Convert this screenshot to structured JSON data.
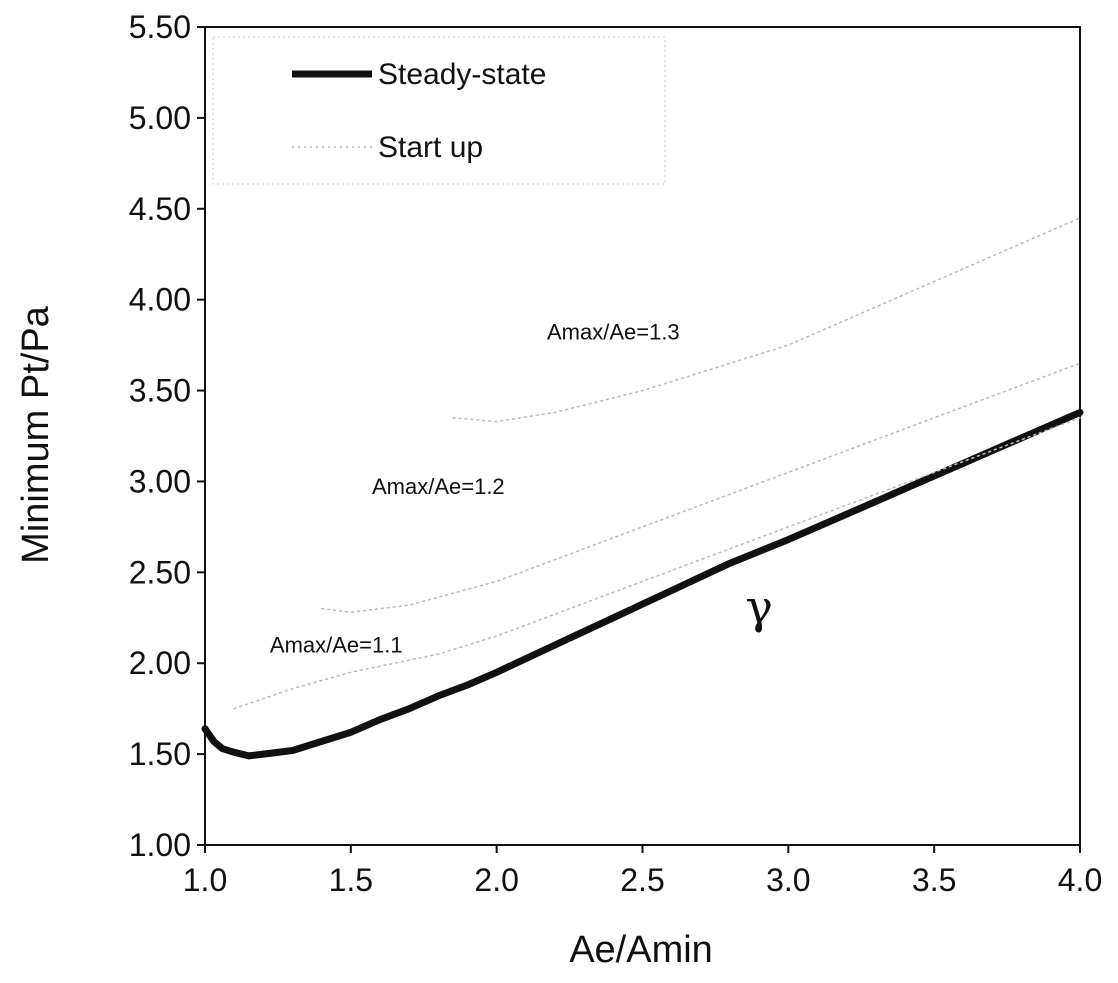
{
  "chart_data": {
    "type": "line",
    "title": "",
    "xlabel": "Ae/Amin",
    "ylabel": "Minimum Pt/Pa",
    "xlim": [
      1.0,
      4.0
    ],
    "ylim": [
      1.0,
      5.5
    ],
    "x_ticks": [
      "1.0",
      "1.5",
      "2.0",
      "2.5",
      "3.0",
      "3.5",
      "4.0"
    ],
    "y_ticks": [
      "1.00",
      "1.50",
      "2.00",
      "2.50",
      "3.00",
      "3.50",
      "4.00",
      "4.50",
      "5.00",
      "5.50"
    ],
    "grid": false,
    "legend": {
      "placement": "top-left",
      "entries": [
        {
          "label": "Steady-state",
          "style": "thick-solid",
          "color": "#111111"
        },
        {
          "label": "Start up",
          "style": "faint-dotted",
          "color": "#bbbbbb"
        }
      ]
    },
    "series": [
      {
        "name": "Steady-state",
        "color": "#111111",
        "x": [
          1.0,
          1.03,
          1.06,
          1.1,
          1.15,
          1.2,
          1.3,
          1.4,
          1.5,
          1.6,
          1.7,
          1.8,
          1.9,
          2.0,
          2.2,
          2.4,
          2.6,
          2.8,
          3.0,
          3.2,
          3.4,
          3.6,
          3.8,
          4.0
        ],
        "y": [
          1.64,
          1.57,
          1.53,
          1.51,
          1.49,
          1.5,
          1.52,
          1.57,
          1.62,
          1.69,
          1.75,
          1.82,
          1.88,
          1.95,
          2.1,
          2.25,
          2.4,
          2.55,
          2.68,
          2.82,
          2.96,
          3.1,
          3.24,
          3.38
        ]
      },
      {
        "name": "Start up",
        "color": "#bbbbbb",
        "x": [
          1.1,
          1.3,
          1.5,
          1.8,
          2.0,
          2.5,
          3.0,
          3.5,
          4.0
        ],
        "y": [
          1.75,
          1.86,
          1.95,
          2.05,
          2.15,
          2.45,
          2.75,
          3.05,
          3.35
        ]
      },
      {
        "name": "Start up",
        "color": "#bbbbbb",
        "x": [
          1.4,
          1.5,
          1.7,
          2.0,
          2.5,
          3.0,
          3.5,
          4.0
        ],
        "y": [
          2.3,
          2.28,
          2.32,
          2.45,
          2.75,
          3.05,
          3.35,
          3.65
        ]
      },
      {
        "name": "Start up",
        "color": "#bbbbbb",
        "x": [
          1.85,
          2.0,
          2.2,
          2.5,
          3.0,
          3.5,
          4.0
        ],
        "y": [
          3.35,
          3.33,
          3.38,
          3.5,
          3.75,
          4.1,
          4.45
        ]
      }
    ],
    "annotations": [
      {
        "text": "Amax/Ae=1.3",
        "x": 2.4,
        "y": 3.78
      },
      {
        "text": "Amax/Ae=1.2",
        "x": 1.8,
        "y": 2.93
      },
      {
        "text": "Amax/Ae=1.1",
        "x": 1.45,
        "y": 2.06
      },
      {
        "text": "γ",
        "x": 2.9,
        "y": 2.22
      }
    ]
  }
}
